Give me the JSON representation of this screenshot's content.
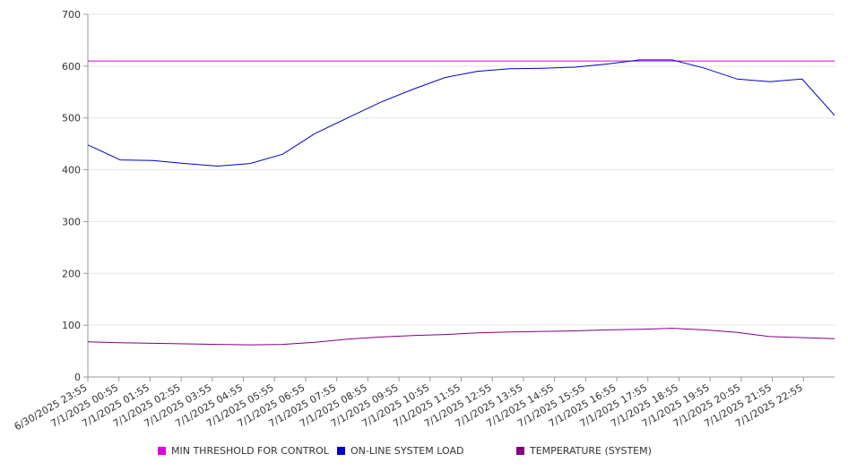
{
  "chart_data": {
    "type": "line",
    "x_categories": [
      "6/30/2025 23:55",
      "7/1/2025 00:55",
      "7/1/2025 01:55",
      "7/1/2025 02:55",
      "7/1/2025 03:55",
      "7/1/2025 04:55",
      "7/1/2025 05:55",
      "7/1/2025 06:55",
      "7/1/2025 07:55",
      "7/1/2025 08:55",
      "7/1/2025 09:55",
      "7/1/2025 10:55",
      "7/1/2025 11:55",
      "7/1/2025 12:55",
      "7/1/2025 13:55",
      "7/1/2025 14:55",
      "7/1/2025 15:55",
      "7/1/2025 16:55",
      "7/1/2025 17:55",
      "7/1/2025 18:55",
      "7/1/2025 19:55",
      "7/1/2025 20:55",
      "7/1/2025 21:55",
      "7/1/2025 22:55"
    ],
    "y_ticks": [
      0,
      100,
      200,
      300,
      400,
      500,
      600,
      700
    ],
    "ylim": [
      0,
      700
    ],
    "grid": true,
    "legend_position": "bottom",
    "series": [
      {
        "name": "MIN THRESHOLD FOR CONTROL",
        "color": "#dd00dd",
        "values": [
          610,
          610,
          610,
          610,
          610,
          610,
          610,
          610,
          610,
          610,
          610,
          610,
          610,
          610,
          610,
          610,
          610,
          610,
          610,
          610,
          610,
          610,
          610,
          610
        ]
      },
      {
        "name": "ON-LINE SYSTEM LOAD",
        "color": "#0000cc",
        "values": [
          448,
          419,
          418,
          412,
          407,
          412,
          430,
          470,
          500,
          530,
          555,
          578,
          590,
          595,
          596,
          598,
          604,
          612,
          612,
          596,
          575,
          570,
          575,
          505
        ]
      },
      {
        "name": "TEMPERATURE (SYSTEM)",
        "color": "#800080",
        "values": [
          68,
          66,
          65,
          64,
          63,
          62,
          63,
          67,
          73,
          77,
          80,
          82,
          85,
          87,
          88,
          89,
          91,
          92,
          94,
          91,
          86,
          78,
          76,
          74
        ]
      }
    ]
  }
}
